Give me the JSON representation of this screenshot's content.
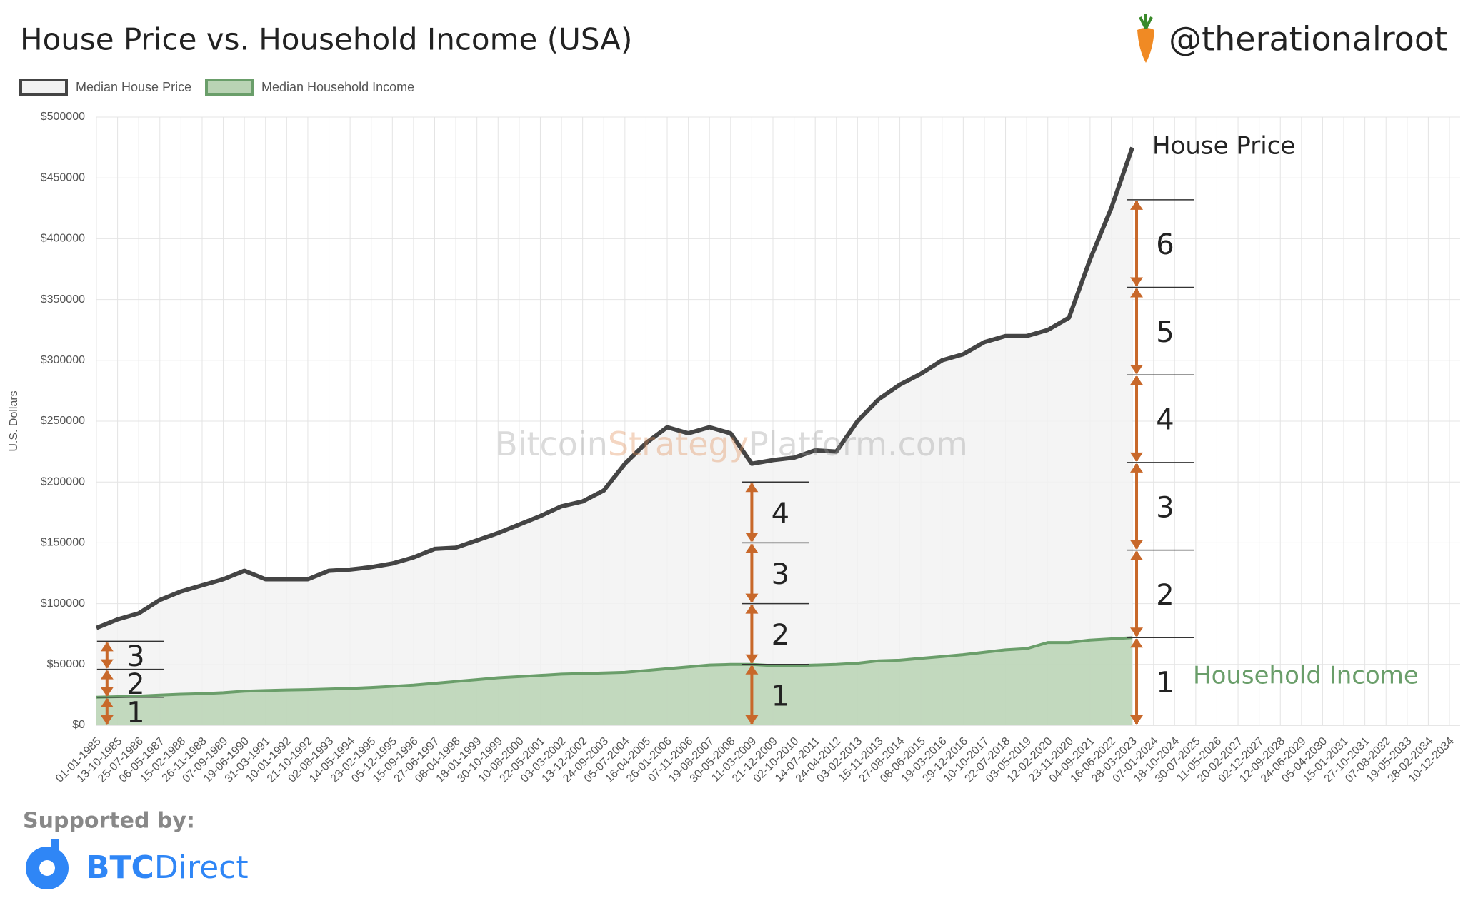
{
  "chart_data": {
    "type": "area",
    "title": "House Price vs. Household Income (USA)",
    "handle": "@therationalroot",
    "y_label": "U.S. Dollars",
    "watermark": [
      "Bitcoin",
      "Strategy",
      "Platform.com"
    ],
    "supported_by": "Supported by:",
    "sponsor": [
      "BTC",
      "Direct"
    ],
    "categories": [
      "01-01-1985",
      "13-10-1985",
      "25-07-1986",
      "06-05-1987",
      "15-02-1988",
      "26-11-1988",
      "07-09-1989",
      "19-06-1990",
      "31-03-1991",
      "10-01-1992",
      "21-10-1992",
      "02-08-1993",
      "14-05-1994",
      "23-02-1995",
      "05-12-1995",
      "15-09-1996",
      "27-06-1997",
      "08-04-1998",
      "18-01-1999",
      "30-10-1999",
      "10-08-2000",
      "22-05-2001",
      "03-03-2002",
      "13-12-2002",
      "24-09-2003",
      "05-07-2004",
      "16-04-2005",
      "26-01-2006",
      "07-11-2006",
      "19-08-2007",
      "30-05-2008",
      "11-03-2009",
      "21-12-2009",
      "02-10-2010",
      "14-07-2011",
      "24-04-2012",
      "03-02-2013",
      "15-11-2013",
      "27-08-2014",
      "08-06-2015",
      "19-03-2016",
      "29-12-2016",
      "10-10-2017",
      "22-07-2018",
      "03-05-2019",
      "12-02-2020",
      "23-11-2020",
      "04-09-2021",
      "16-06-2022",
      "28-03-2023",
      "07-01-2024",
      "18-10-2024",
      "30-07-2025",
      "11-05-2026",
      "20-02-2027",
      "02-12-2027",
      "12-09-2028",
      "24-06-2029",
      "05-04-2030",
      "15-01-2031",
      "27-10-2031",
      "07-08-2032",
      "19-05-2033",
      "28-02-2034",
      "10-12-2034"
    ],
    "series": [
      {
        "name": "Median House Price",
        "color": "#444444",
        "fill": "#f2f2f2",
        "values": [
          80000,
          87000,
          92000,
          103000,
          110000,
          115000,
          120000,
          127000,
          120000,
          120000,
          120000,
          127000,
          128000,
          130000,
          133000,
          138000,
          145000,
          146000,
          152000,
          158000,
          165000,
          172000,
          180000,
          184000,
          193000,
          215000,
          232000,
          245000,
          240000,
          245000,
          240000,
          215000,
          218000,
          220000,
          226000,
          225000,
          250000,
          268000,
          280000,
          289000,
          300000,
          305000,
          315000,
          320000,
          320000,
          325000,
          335000,
          383000,
          425000,
          475000,
          null,
          null,
          null,
          null,
          null,
          null,
          null,
          null,
          null,
          null,
          null,
          null,
          null,
          null,
          null
        ]
      },
      {
        "name": "Median Household Income",
        "color": "#6a9e6a",
        "fill": "#b9d3b4",
        "values": [
          23000,
          23500,
          24000,
          24800,
          25500,
          26000,
          26800,
          28000,
          28500,
          29000,
          29300,
          29800,
          30300,
          31000,
          32000,
          33000,
          34500,
          36000,
          37500,
          39000,
          40000,
          41000,
          42000,
          42500,
          43000,
          43500,
          45000,
          46500,
          48000,
          49500,
          50000,
          50000,
          49000,
          49000,
          49500,
          50000,
          51000,
          53000,
          53500,
          55000,
          56500,
          58000,
          60000,
          62000,
          63000,
          68000,
          68000,
          70000,
          71000,
          72000,
          null,
          null,
          null,
          null,
          null,
          null,
          null,
          null,
          null,
          null,
          null,
          null,
          null,
          null,
          null
        ]
      }
    ],
    "ylim": [
      0,
      500000
    ],
    "yticks": [
      {
        "value": 0,
        "label": "$0"
      },
      {
        "value": 50000,
        "label": "$50000"
      },
      {
        "value": 100000,
        "label": "$100000"
      },
      {
        "value": 150000,
        "label": "$150000"
      },
      {
        "value": 200000,
        "label": "$200000"
      },
      {
        "value": 250000,
        "label": "$250000"
      },
      {
        "value": 300000,
        "label": "$300000"
      },
      {
        "value": 350000,
        "label": "$350000"
      },
      {
        "value": 400000,
        "label": "$400000"
      },
      {
        "value": 450000,
        "label": "$450000"
      },
      {
        "value": 500000,
        "label": "$500000"
      }
    ],
    "grid": true,
    "legend": "top-left",
    "annotations": [
      {
        "multiples": [
          1,
          2,
          3
        ]
      },
      {
        "multiples": [
          1,
          2,
          3,
          4
        ]
      },
      {
        "multiples": [
          1,
          2,
          3,
          4,
          5,
          6
        ]
      }
    ],
    "series_labels": [
      "House Price",
      "Household Income"
    ],
    "annotation_color": "#c8682a"
  }
}
